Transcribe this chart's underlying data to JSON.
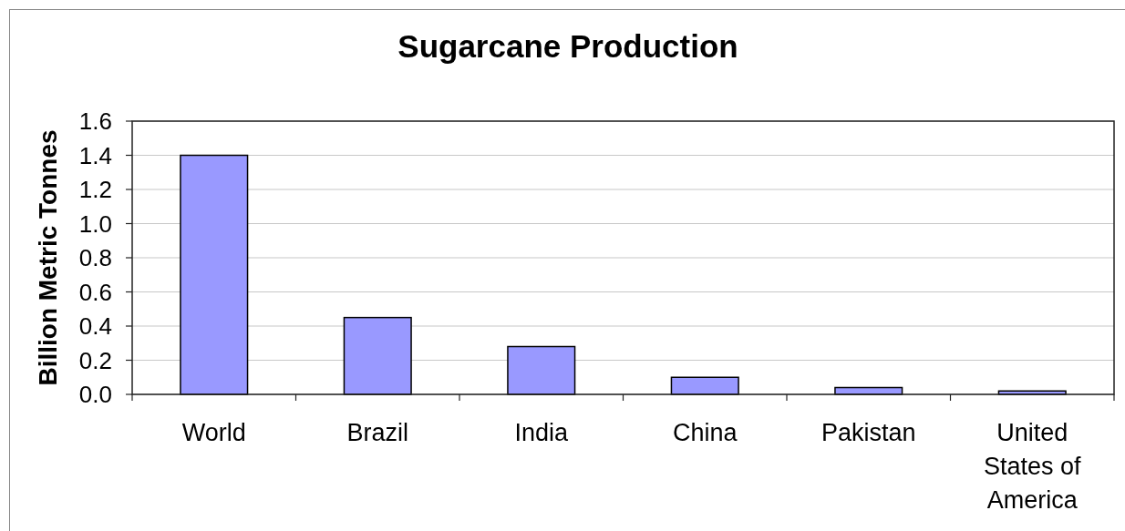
{
  "chart_data": {
    "type": "bar",
    "title": "Sugarcane Production",
    "ylabel": "Billion Metric Tonnes",
    "categories": [
      "World",
      "Brazil",
      "India",
      "China",
      "Pakistan",
      "United States of America"
    ],
    "values": [
      1.4,
      0.45,
      0.28,
      0.1,
      0.04,
      0.02
    ],
    "color": "#9999ff",
    "ylim": [
      0,
      1.6
    ],
    "yticks": [
      {
        "value": 0,
        "label": "0.0"
      },
      {
        "value": 0.2,
        "label": "0.2"
      },
      {
        "value": 0.4,
        "label": "0.4"
      },
      {
        "value": 0.6,
        "label": "0.6"
      },
      {
        "value": 0.8,
        "label": "0.8"
      },
      {
        "value": 1,
        "label": "1.0"
      },
      {
        "value": 1.2,
        "label": "1.2"
      },
      {
        "value": 1.4,
        "label": "1.4"
      },
      {
        "value": 1.6,
        "label": "1.6"
      }
    ],
    "grid": "y"
  }
}
